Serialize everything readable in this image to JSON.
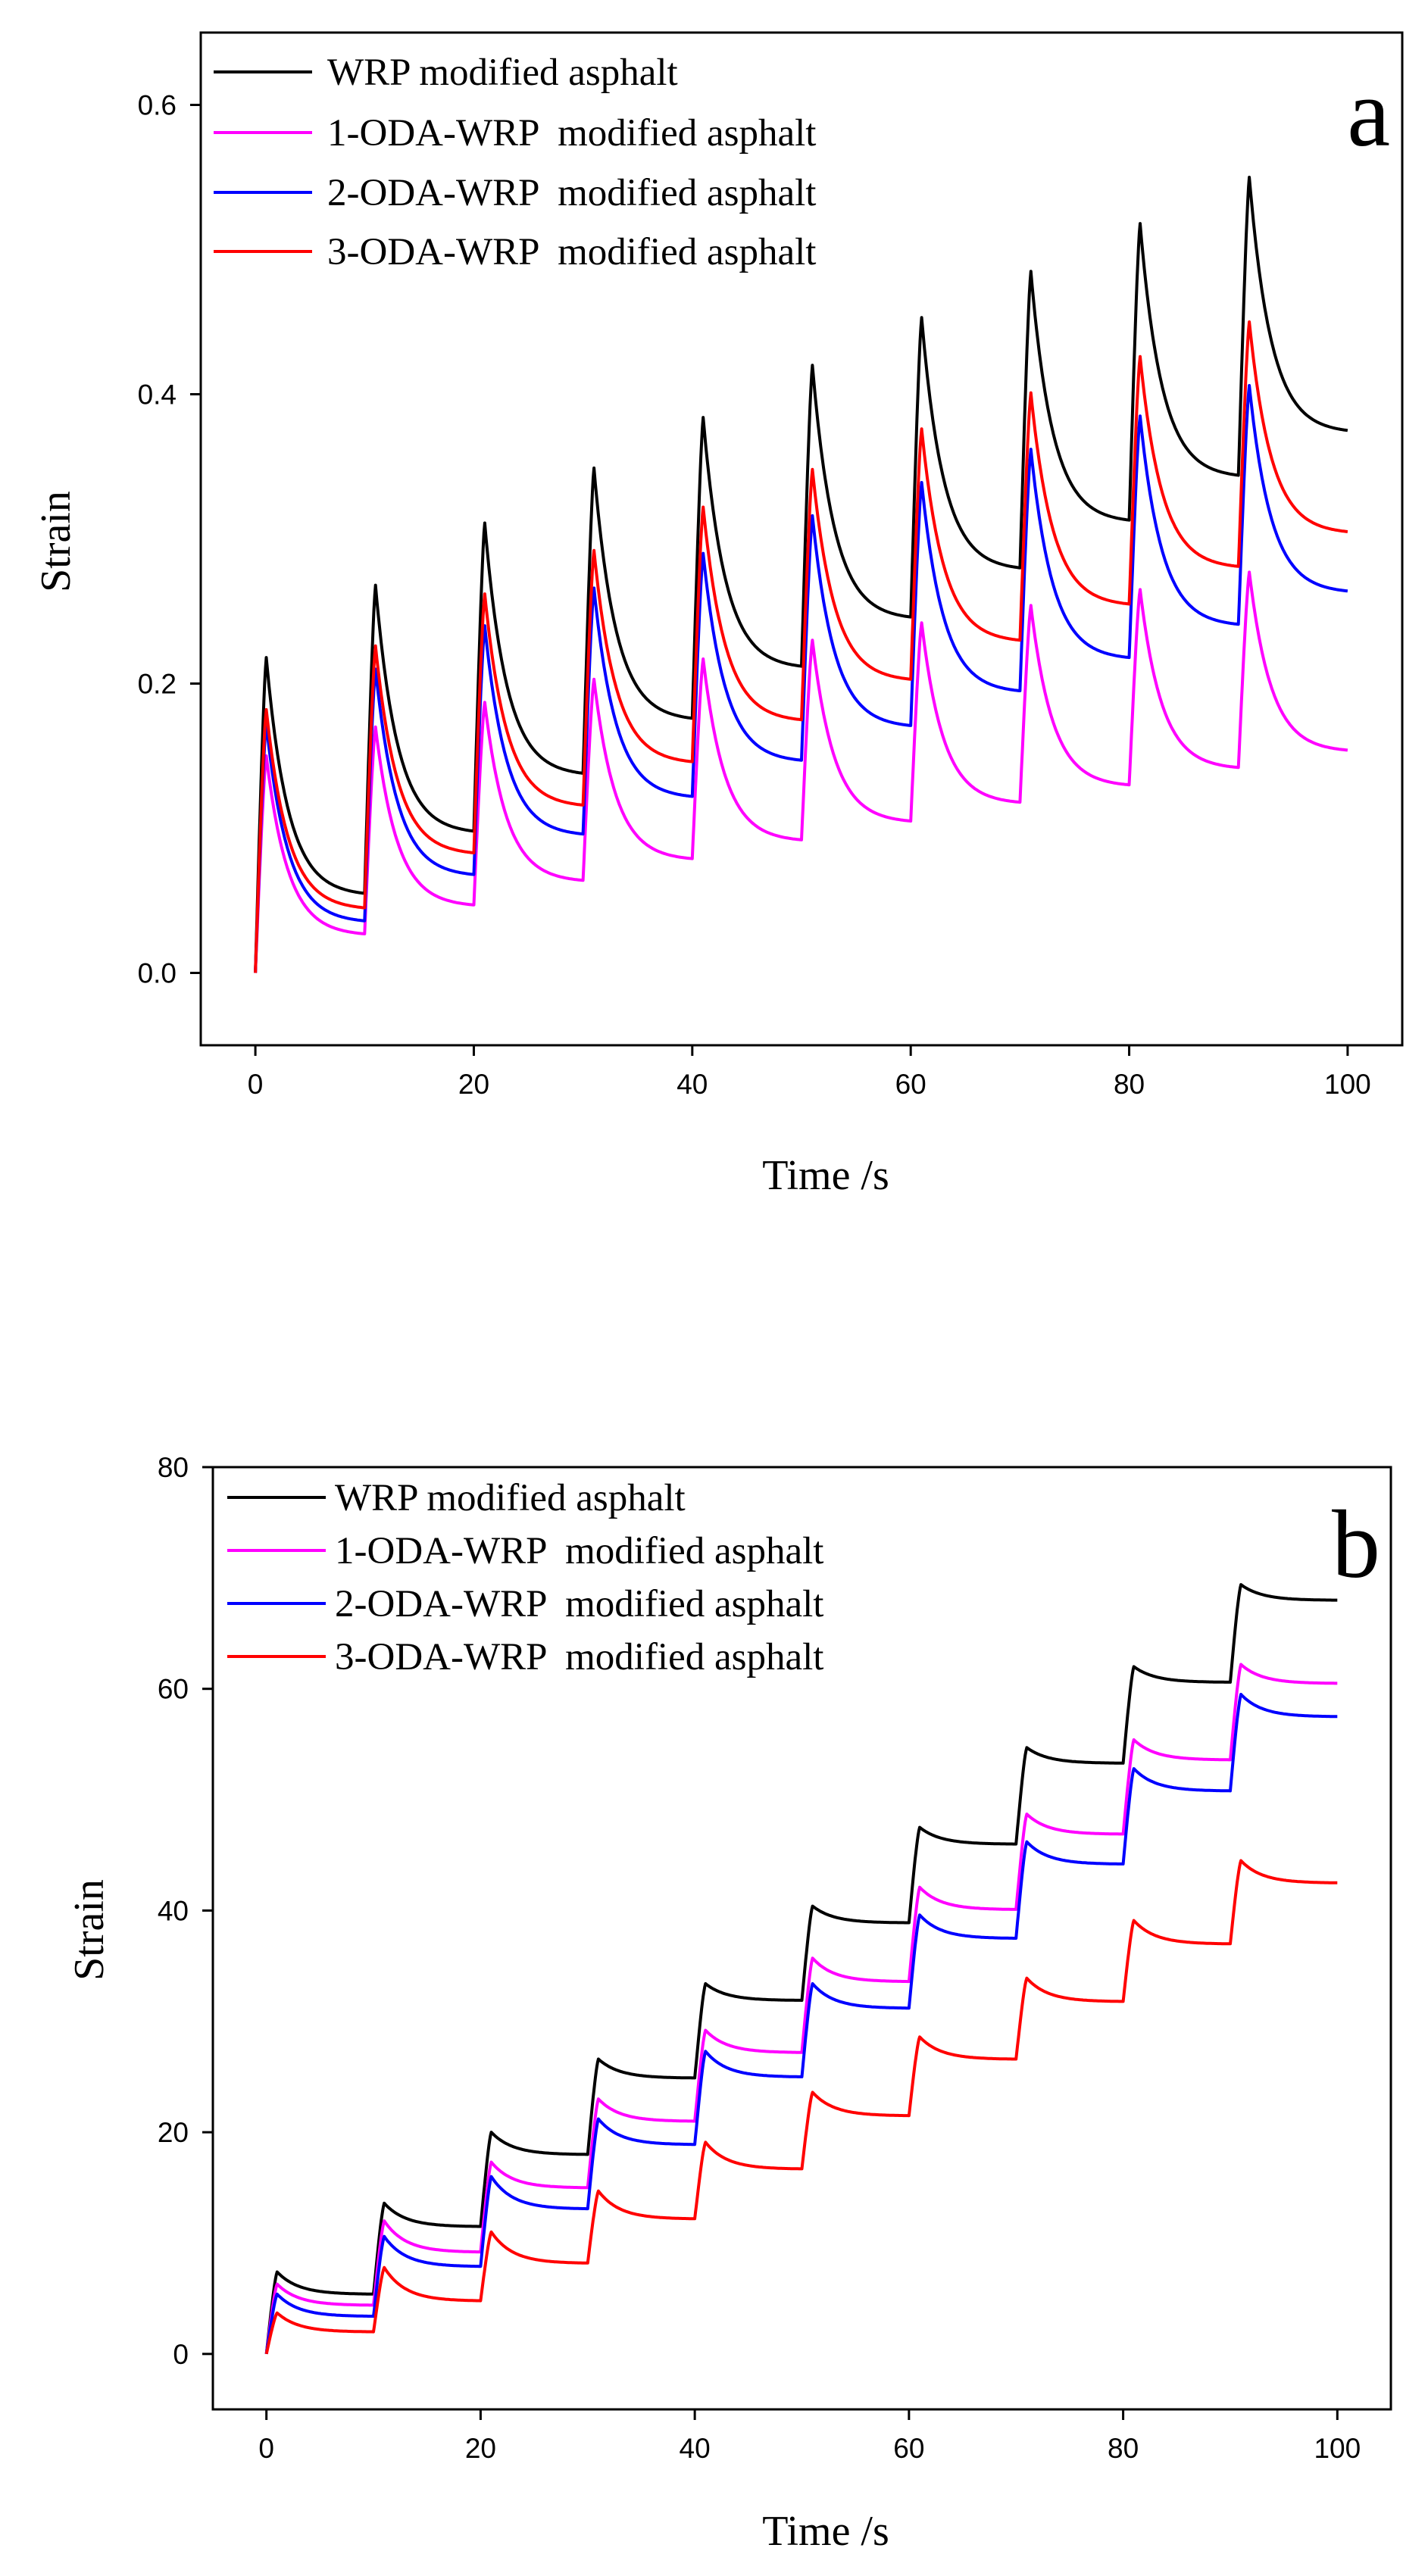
{
  "figure": {
    "panels": [
      {
        "letter": "a"
      },
      {
        "letter": "b"
      }
    ]
  },
  "chart_data": [
    {
      "type": "line",
      "panel": "a",
      "title": "",
      "xlabel": "Time /s",
      "ylabel": "Strain",
      "xlim": [
        -5,
        105
      ],
      "ylim": [
        -0.05,
        0.65
      ],
      "xticks": [
        0,
        20,
        40,
        60,
        80,
        100
      ],
      "yticks": [
        0.0,
        0.2,
        0.4,
        0.6
      ],
      "ytick_labels": [
        "0.0",
        "0.2",
        "0.4",
        "0.6"
      ],
      "legend_position": "top-left",
      "cycle_period": 10,
      "load_duration": 1,
      "series": [
        {
          "name": "WRP modified asphalt",
          "color": "#000000",
          "peaks": [
            0.218,
            0.268,
            0.311,
            0.349,
            0.384,
            0.42,
            0.453,
            0.485,
            0.518,
            0.55
          ],
          "troughs": [
            0.055,
            0.098,
            0.138,
            0.176,
            0.212,
            0.246,
            0.28,
            0.313,
            0.344,
            0.375
          ]
        },
        {
          "name": "1-ODA-WRP  modified asphalt",
          "color": "#ff00ff",
          "peaks": [
            0.15,
            0.17,
            0.187,
            0.203,
            0.217,
            0.23,
            0.242,
            0.254,
            0.265,
            0.277
          ],
          "troughs": [
            0.027,
            0.047,
            0.064,
            0.079,
            0.092,
            0.105,
            0.118,
            0.13,
            0.142,
            0.154
          ]
        },
        {
          "name": "2-ODA-WRP  modified asphalt",
          "color": "#0000ff",
          "peaks": [
            0.172,
            0.21,
            0.24,
            0.266,
            0.29,
            0.316,
            0.339,
            0.362,
            0.385,
            0.406
          ],
          "troughs": [
            0.036,
            0.068,
            0.096,
            0.122,
            0.147,
            0.171,
            0.195,
            0.218,
            0.241,
            0.264
          ]
        },
        {
          "name": "3-ODA-WRP  modified asphalt",
          "color": "#ff0000",
          "peaks": [
            0.182,
            0.226,
            0.262,
            0.292,
            0.322,
            0.348,
            0.376,
            0.401,
            0.426,
            0.45
          ],
          "troughs": [
            0.045,
            0.083,
            0.116,
            0.146,
            0.175,
            0.203,
            0.23,
            0.255,
            0.281,
            0.305
          ]
        }
      ]
    },
    {
      "type": "line",
      "panel": "b",
      "title": "",
      "xlabel": "Time /s",
      "ylabel": "Strain",
      "xlim": [
        -5,
        105
      ],
      "ylim": [
        -5,
        80
      ],
      "xticks": [
        0,
        20,
        40,
        60,
        80,
        100
      ],
      "yticks": [
        0,
        20,
        40,
        60,
        80
      ],
      "ytick_labels": [
        "0",
        "20",
        "40",
        "60",
        "80"
      ],
      "legend_position": "top-left",
      "cycle_period": 10,
      "load_duration": 1,
      "series": [
        {
          "name": "WRP modified asphalt",
          "color": "#000000",
          "peaks": [
            7.4,
            13.6,
            20.0,
            26.6,
            33.4,
            40.4,
            47.5,
            54.7,
            62.0,
            69.4
          ],
          "troughs": [
            5.4,
            11.5,
            18.0,
            24.9,
            31.9,
            38.9,
            46.0,
            53.3,
            60.6,
            68.0
          ]
        },
        {
          "name": "1-ODA-WRP  modified asphalt",
          "color": "#ff00ff",
          "peaks": [
            6.3,
            12.0,
            17.3,
            23.0,
            29.2,
            35.7,
            42.1,
            48.7,
            55.4,
            62.2
          ],
          "troughs": [
            4.4,
            9.2,
            15.0,
            21.0,
            27.2,
            33.6,
            40.1,
            46.9,
            53.6,
            60.5
          ]
        },
        {
          "name": "2-ODA-WRP  modified asphalt",
          "color": "#0000ff",
          "peaks": [
            5.4,
            10.6,
            16.0,
            21.2,
            27.3,
            33.4,
            39.6,
            46.2,
            52.8,
            59.5
          ],
          "troughs": [
            3.4,
            7.9,
            13.1,
            18.9,
            25.0,
            31.2,
            37.5,
            44.2,
            50.8,
            57.5
          ]
        },
        {
          "name": "3-ODA-WRP  modified asphalt",
          "color": "#ff0000",
          "peaks": [
            3.7,
            7.8,
            11.0,
            14.7,
            19.1,
            23.6,
            28.6,
            33.9,
            39.1,
            44.5
          ],
          "troughs": [
            2.0,
            4.8,
            8.2,
            12.2,
            16.7,
            21.5,
            26.6,
            31.8,
            37.0,
            42.5
          ]
        }
      ]
    }
  ]
}
